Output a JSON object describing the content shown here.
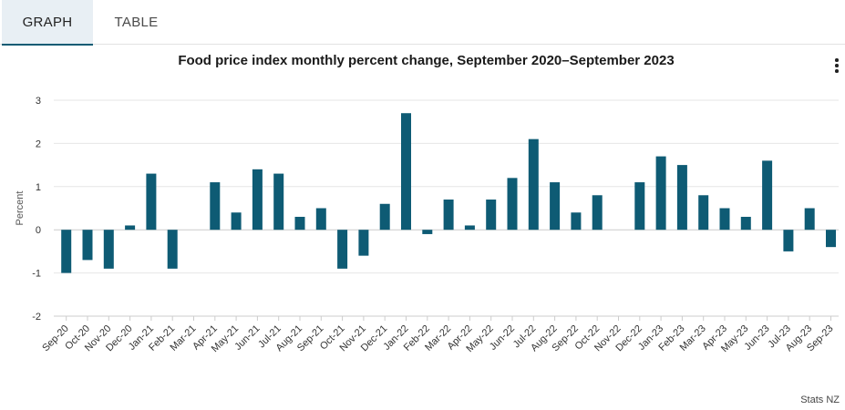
{
  "tabs": [
    {
      "label": "GRAPH",
      "active": true
    },
    {
      "label": "TABLE",
      "active": false
    }
  ],
  "menu": {
    "icon": "vertical-ellipsis-icon"
  },
  "credit": "Stats NZ",
  "colors": {
    "bar": "#0e5b74",
    "accent": "#0e5b74",
    "tab_active_bg": "#e8eff4"
  },
  "chart_data": {
    "type": "bar",
    "title": "Food price index monthly percent change, September 2020–September 2023",
    "ylabel": "Percent",
    "xlabel": "",
    "ylim": [
      -2,
      3
    ],
    "yticks": [
      "-2",
      "-1",
      "0",
      "1",
      "2",
      "3"
    ],
    "grid": true,
    "legend": "none",
    "categories": [
      "Sep-20",
      "Oct-20",
      "Nov-20",
      "Dec-20",
      "Jan-21",
      "Feb-21",
      "Mar-21",
      "Apr-21",
      "May-21",
      "Jun-21",
      "Jul-21",
      "Aug-21",
      "Sep-21",
      "Oct-21",
      "Nov-21",
      "Dec-21",
      "Jan-22",
      "Feb-22",
      "Mar-22",
      "Apr-22",
      "May-22",
      "Jun-22",
      "Jul-22",
      "Aug-22",
      "Sep-22",
      "Oct-22",
      "Nov-22",
      "Dec-22",
      "Jan-23",
      "Feb-23",
      "Mar-23",
      "Apr-23",
      "May-23",
      "Jun-23",
      "Jul-23",
      "Aug-23",
      "Sep-23"
    ],
    "values": [
      -1.0,
      -0.7,
      -0.9,
      0.1,
      1.3,
      -0.9,
      0.0,
      1.1,
      0.4,
      1.4,
      1.3,
      0.3,
      0.5,
      -0.9,
      -0.6,
      0.6,
      2.7,
      -0.1,
      0.7,
      0.1,
      0.7,
      1.2,
      2.1,
      1.1,
      0.4,
      0.8,
      0.0,
      1.1,
      1.7,
      1.5,
      0.8,
      0.5,
      0.3,
      1.6,
      -0.5,
      0.5,
      -0.4
    ]
  }
}
